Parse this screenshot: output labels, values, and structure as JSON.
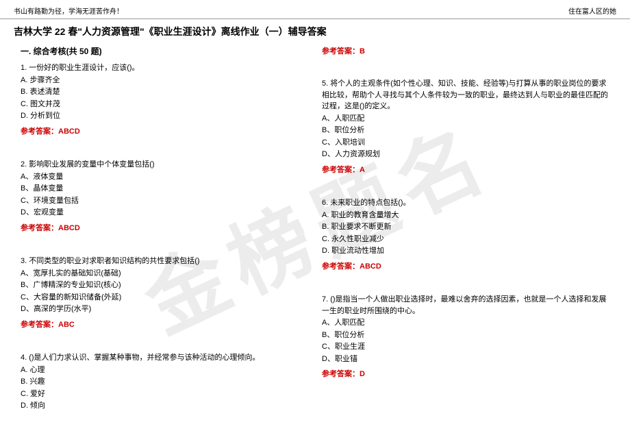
{
  "header": {
    "left": "书山有路勤为径，学海无涯苦作舟！",
    "right": "住在富人区的她"
  },
  "title": "吉林大学 22 春\"人力资源管理\"《职业生涯设计》离线作业（一）辅导答案",
  "watermark": "金榜题名",
  "sectionTitle": "一. 综合考核(共 50 题)",
  "answerLabel": "参考答案：",
  "leftColumn": {
    "questions": [
      {
        "text": "1. 一份好的职业生涯设计，应该()。",
        "options": [
          "A. 步骤齐全",
          "B. 表述清楚",
          "C. 图文并茂",
          "D. 分析到位"
        ],
        "answer": "ABCD"
      },
      {
        "text": "2. 影响职业发展的变量中个体变量包括()",
        "options": [
          "A、液体变量",
          "B、晶体变量",
          "C、环境变量包括",
          "D、宏观变量"
        ],
        "answer": "ABCD"
      },
      {
        "text": "3. 不同类型的职业对求职者知识结构的共性要求包括()",
        "options": [
          "A、宽厚扎实的基础知识(基础)",
          "B、广博精深的专业知识(核心)",
          "C、大容量的新知识储备(外延)",
          "D、高深的学历(水平)"
        ],
        "answer": "ABC"
      },
      {
        "text": "4. ()是人们力求认识、掌握某种事物，并经常参与该种活动的心理倾向。",
        "options": [
          "A. 心理",
          "B. 兴趣",
          "C. 爱好",
          "D. 倾向"
        ],
        "answer": ""
      }
    ]
  },
  "rightColumn": {
    "topAnswer": "B",
    "questions": [
      {
        "text": "5. 将个人的主观条件(如个性心理、知识、技能、经验等)与打算从事的职业岗位的要求相比较，帮助个人寻找与其个人条件较为一致的职业，最终达到人与职业的最佳匹配的过程，这是()的定义。",
        "options": [
          "A、人职匹配",
          "B、职位分析",
          "C、入职培训",
          "D、人力资源规划"
        ],
        "answer": "A"
      },
      {
        "text": "6. 未来职业的特点包括()。",
        "options": [
          "A. 职业的教育含量增大",
          "B. 职业要求不断更新",
          "C. 永久性职业减少",
          "D. 职业流动性增加"
        ],
        "answer": "ABCD"
      },
      {
        "text": "7. ()是指当一个人做出职业选择时，最难以舍弃的选择因素，也就是一个人选择和发展一生的职业时所围绕的中心。",
        "options": [
          "A、人职匹配",
          "B、职位分析",
          "C、职业生涯",
          "D、职业锚"
        ],
        "answer": "D"
      }
    ]
  },
  "colors": {
    "answer": "#cc0000",
    "border": "#999999",
    "watermark": "rgba(200,200,200,0.35)",
    "text": "#000000",
    "background": "#ffffff"
  }
}
